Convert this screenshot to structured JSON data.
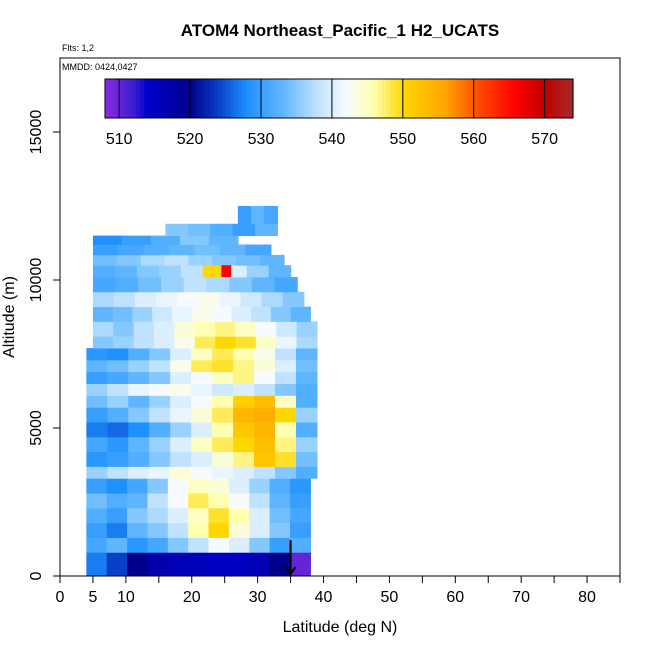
{
  "chart_data": {
    "type": "heatmap",
    "title": "ATOM4 Northeast_Pacific_1 H2_UCATS",
    "flights_label": "Flts: 1,2",
    "dates_label": "MMDD: 0424,0427",
    "xlabel": "Latitude (deg N)",
    "ylabel": "Altitude (m)",
    "xlim": [
      0,
      85
    ],
    "ylim": [
      0,
      17500
    ],
    "x_ticks": [
      0,
      5,
      10,
      20,
      30,
      40,
      50,
      60,
      70,
      80
    ],
    "x_minor_ticks": [
      15,
      25,
      35,
      45,
      55,
      65,
      75,
      85
    ],
    "y_ticks": [
      0,
      5000,
      10000,
      15000
    ],
    "colorbar": {
      "min": 508,
      "max": 574,
      "ticks": [
        510,
        520,
        530,
        540,
        550,
        560,
        570
      ],
      "stops": [
        {
          "v": 508,
          "c": "#8a2be2"
        },
        {
          "v": 512,
          "c": "#3d1fd0"
        },
        {
          "v": 514,
          "c": "#0000cd"
        },
        {
          "v": 520,
          "c": "#00008b"
        },
        {
          "v": 524,
          "c": "#0a3fc8"
        },
        {
          "v": 528,
          "c": "#1e90ff"
        },
        {
          "v": 533,
          "c": "#5fb6ff"
        },
        {
          "v": 538,
          "c": "#bfe3ff"
        },
        {
          "v": 542,
          "c": "#f7fbff"
        },
        {
          "v": 546,
          "c": "#ffffb0"
        },
        {
          "v": 550,
          "c": "#ffd700"
        },
        {
          "v": 556,
          "c": "#ffa500"
        },
        {
          "v": 561,
          "c": "#ff4500"
        },
        {
          "v": 566,
          "c": "#ff0000"
        },
        {
          "v": 570,
          "c": "#c00000"
        },
        {
          "v": 574,
          "c": "#a52a2a"
        }
      ]
    },
    "profile_bands": [
      {
        "alt": [
          0,
          800
        ],
        "lat": [
          4,
          38
        ],
        "values": [
          527,
          524,
          520,
          517,
          516,
          516,
          515,
          515,
          516,
          520,
          510
        ]
      },
      {
        "alt": [
          800,
          1300
        ],
        "lat": [
          4,
          38
        ],
        "values": [
          531,
          533,
          529,
          531,
          535,
          538,
          542,
          540,
          535,
          530,
          532
        ]
      },
      {
        "alt": [
          1300,
          1800
        ],
        "lat": [
          4,
          38
        ],
        "values": [
          530,
          527,
          533,
          535,
          538,
          546,
          550,
          544,
          540,
          535,
          530
        ]
      },
      {
        "alt": [
          1800,
          2300
        ],
        "lat": [
          4,
          38
        ],
        "values": [
          532,
          530,
          535,
          537,
          540,
          545,
          549,
          546,
          540,
          534,
          531
        ]
      },
      {
        "alt": [
          2300,
          2800
        ],
        "lat": [
          4,
          38
        ],
        "values": [
          534,
          532,
          533,
          538,
          542,
          548,
          546,
          542,
          538,
          533,
          530
        ]
      },
      {
        "alt": [
          2800,
          3300
        ],
        "lat": [
          4,
          38
        ],
        "values": [
          530,
          528,
          531,
          535,
          542,
          545,
          544,
          540,
          536,
          532,
          529
        ]
      },
      {
        "alt": [
          3300,
          3700
        ],
        "lat": [
          4,
          39
        ],
        "values": [
          536,
          538,
          540,
          541,
          544,
          542,
          541,
          540,
          538,
          535,
          532
        ]
      },
      {
        "alt": [
          3700,
          4200
        ],
        "lat": [
          4,
          39
        ],
        "values": [
          529,
          530,
          532,
          535,
          538,
          540,
          544,
          547,
          552,
          549,
          534
        ]
      },
      {
        "alt": [
          4200,
          4700
        ],
        "lat": [
          4,
          39
        ],
        "values": [
          531,
          529,
          533,
          536,
          540,
          545,
          548,
          550,
          553,
          547,
          536
        ]
      },
      {
        "alt": [
          4700,
          5200
        ],
        "lat": [
          4,
          39
        ],
        "values": [
          527,
          526,
          528,
          532,
          536,
          540,
          546,
          552,
          554,
          546,
          532
        ]
      },
      {
        "alt": [
          5200,
          5700
        ],
        "lat": [
          4,
          39
        ],
        "values": [
          530,
          532,
          535,
          538,
          541,
          544,
          548,
          554,
          555,
          550,
          536
        ]
      },
      {
        "alt": [
          5700,
          6100
        ],
        "lat": [
          4,
          39
        ],
        "values": [
          534,
          536,
          533,
          536,
          540,
          542,
          546,
          551,
          553,
          545,
          532
        ]
      },
      {
        "alt": [
          6100,
          6500
        ],
        "lat": [
          4,
          39
        ],
        "values": [
          536,
          538,
          541,
          542,
          543,
          541,
          539,
          540,
          538,
          535,
          532
        ]
      },
      {
        "alt": [
          6500,
          6900
        ],
        "lat": [
          4,
          39
        ],
        "values": [
          530,
          531,
          533,
          535,
          540,
          542,
          545,
          547,
          542,
          538,
          533
        ]
      },
      {
        "alt": [
          6900,
          7300
        ],
        "lat": [
          4,
          39
        ],
        "values": [
          533,
          534,
          536,
          538,
          543,
          548,
          549,
          547,
          544,
          540,
          534
        ]
      },
      {
        "alt": [
          7300,
          7700
        ],
        "lat": [
          4,
          39
        ],
        "values": [
          529,
          528,
          532,
          535,
          540,
          545,
          548,
          546,
          543,
          538,
          533
        ]
      },
      {
        "alt": [
          7700,
          8100
        ],
        "lat": [
          5,
          39
        ],
        "values": [
          535,
          536,
          538,
          540,
          543,
          548,
          550,
          549,
          545,
          541,
          537
        ]
      },
      {
        "alt": [
          8100,
          8600
        ],
        "lat": [
          5,
          39
        ],
        "values": [
          537,
          535,
          538,
          540,
          544,
          546,
          547,
          545,
          542,
          539,
          536
        ]
      },
      {
        "alt": [
          8600,
          9100
        ],
        "lat": [
          5,
          38
        ],
        "values": [
          533,
          534,
          536,
          539,
          541,
          543,
          542,
          540,
          538,
          535,
          533
        ]
      },
      {
        "alt": [
          9100,
          9600
        ],
        "lat": [
          5,
          37
        ],
        "values": [
          537,
          538,
          540,
          541,
          542,
          543,
          541,
          539,
          537,
          535
        ]
      },
      {
        "alt": [
          9600,
          10100
        ],
        "lat": [
          5,
          36
        ],
        "values": [
          531,
          532,
          534,
          536,
          538,
          537,
          535,
          533,
          531
        ]
      },
      {
        "alt": [
          10100,
          10500
        ],
        "lat": [
          5,
          35
        ],
        "values": [
          532,
          533,
          535,
          536,
          538,
          550,
          540,
          536,
          533
        ]
      },
      {
        "alt": [
          10500,
          10850
        ],
        "lat": [
          5,
          34
        ],
        "values": [
          534,
          535,
          537,
          538,
          536,
          535,
          534,
          533
        ]
      },
      {
        "alt": [
          10850,
          11200
        ],
        "lat": [
          5,
          32
        ],
        "values": [
          530,
          531,
          532,
          533,
          534,
          533,
          531
        ]
      },
      {
        "alt": [
          11200,
          11500
        ],
        "lat": [
          5,
          27
        ],
        "values": [
          528,
          530,
          532,
          535,
          533
        ]
      },
      {
        "alt": [
          11500,
          11900
        ],
        "lat": [
          16,
          33
        ],
        "values": [
          535,
          534,
          532,
          530,
          533
        ]
      },
      {
        "alt": [
          11900,
          12500
        ],
        "lat": [
          27,
          33
        ],
        "values": [
          530,
          533,
          531
        ]
      }
    ],
    "hotspot": {
      "lat": [
        24.5,
        26
      ],
      "alt": [
        10100,
        10500
      ],
      "value": 566
    },
    "flight_direction_marker": {
      "lat": 35,
      "alt_from": 600,
      "alt_to": 0
    }
  }
}
